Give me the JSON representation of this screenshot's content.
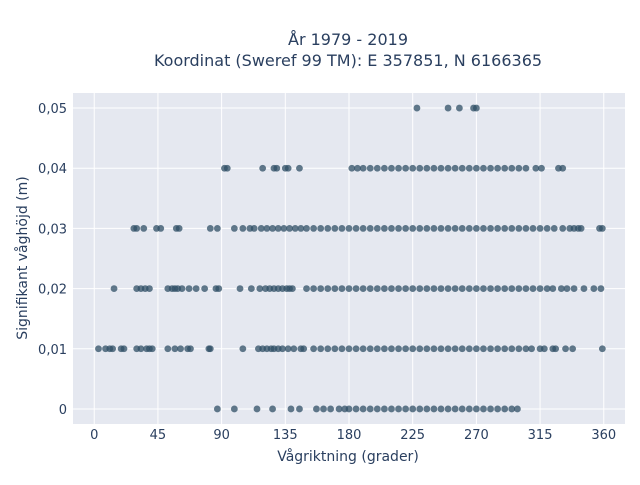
{
  "chart_data": {
    "type": "scatter",
    "title": "År 1979 - 2019",
    "subtitle": "Koordinat (Sweref 99 TM): E 357851, N 6166365",
    "xlabel": "Vågriktning (grader)",
    "ylabel": "Signifikant våghöjd (m)",
    "xlim": [
      -15,
      375
    ],
    "ylim": [
      -0.0025,
      0.0525
    ],
    "x_ticks": [
      0,
      45,
      90,
      135,
      180,
      225,
      270,
      315,
      360
    ],
    "x_tick_labels": [
      "0",
      "45",
      "90",
      "135",
      "180",
      "225",
      "270",
      "315",
      "360"
    ],
    "y_ticks": [
      0,
      0.01,
      0.02,
      0.03,
      0.04,
      0.05
    ],
    "y_tick_labels": [
      "0",
      "0,01",
      "0,02",
      "0,03",
      "0,04",
      "0,05"
    ],
    "grid": true,
    "marker_color": "#2f4f66",
    "plot_bg": "#e5e8f0",
    "series": [
      {
        "points": [
          [
            87,
            0
          ],
          [
            99,
            0
          ],
          [
            115,
            0
          ],
          [
            126,
            0
          ],
          [
            139,
            0
          ],
          [
            145,
            0
          ],
          [
            157,
            0
          ],
          [
            162,
            0
          ],
          [
            167,
            0
          ],
          [
            173,
            0
          ],
          [
            177,
            0
          ],
          [
            180,
            0
          ],
          [
            185,
            0
          ],
          [
            190,
            0
          ],
          [
            195,
            0
          ],
          [
            200,
            0
          ],
          [
            205,
            0
          ],
          [
            210,
            0
          ],
          [
            215,
            0
          ],
          [
            220,
            0
          ],
          [
            225,
            0
          ],
          [
            230,
            0
          ],
          [
            235,
            0
          ],
          [
            240,
            0
          ],
          [
            245,
            0
          ],
          [
            250,
            0
          ],
          [
            255,
            0
          ],
          [
            260,
            0
          ],
          [
            265,
            0
          ],
          [
            270,
            0
          ],
          [
            275,
            0
          ],
          [
            280,
            0
          ],
          [
            285,
            0
          ],
          [
            290,
            0
          ],
          [
            295,
            0
          ],
          [
            299,
            0
          ],
          [
            3,
            0.01
          ],
          [
            8,
            0.01
          ],
          [
            11,
            0.01
          ],
          [
            13,
            0.01
          ],
          [
            19,
            0.01
          ],
          [
            21,
            0.01
          ],
          [
            30,
            0.01
          ],
          [
            33,
            0.01
          ],
          [
            37,
            0.01
          ],
          [
            39,
            0.01
          ],
          [
            41,
            0.01
          ],
          [
            52,
            0.01
          ],
          [
            57,
            0.01
          ],
          [
            61,
            0.01
          ],
          [
            66,
            0.01
          ],
          [
            68,
            0.01
          ],
          [
            81,
            0.01
          ],
          [
            82,
            0.01
          ],
          [
            105,
            0.01
          ],
          [
            116,
            0.01
          ],
          [
            119,
            0.01
          ],
          [
            122,
            0.01
          ],
          [
            125,
            0.01
          ],
          [
            127,
            0.01
          ],
          [
            130,
            0.01
          ],
          [
            133,
            0.01
          ],
          [
            137,
            0.01
          ],
          [
            141,
            0.01
          ],
          [
            146,
            0.01
          ],
          [
            148,
            0.01
          ],
          [
            155,
            0.01
          ],
          [
            160,
            0.01
          ],
          [
            165,
            0.01
          ],
          [
            170,
            0.01
          ],
          [
            175,
            0.01
          ],
          [
            180,
            0.01
          ],
          [
            185,
            0.01
          ],
          [
            190,
            0.01
          ],
          [
            195,
            0.01
          ],
          [
            200,
            0.01
          ],
          [
            205,
            0.01
          ],
          [
            210,
            0.01
          ],
          [
            215,
            0.01
          ],
          [
            220,
            0.01
          ],
          [
            225,
            0.01
          ],
          [
            230,
            0.01
          ],
          [
            235,
            0.01
          ],
          [
            240,
            0.01
          ],
          [
            245,
            0.01
          ],
          [
            250,
            0.01
          ],
          [
            255,
            0.01
          ],
          [
            260,
            0.01
          ],
          [
            265,
            0.01
          ],
          [
            270,
            0.01
          ],
          [
            275,
            0.01
          ],
          [
            280,
            0.01
          ],
          [
            285,
            0.01
          ],
          [
            290,
            0.01
          ],
          [
            295,
            0.01
          ],
          [
            300,
            0.01
          ],
          [
            305,
            0.01
          ],
          [
            309,
            0.01
          ],
          [
            315,
            0.01
          ],
          [
            318,
            0.01
          ],
          [
            324,
            0.01
          ],
          [
            326,
            0.01
          ],
          [
            333,
            0.01
          ],
          [
            338,
            0.01
          ],
          [
            359,
            0.01
          ],
          [
            14,
            0.02
          ],
          [
            30,
            0.02
          ],
          [
            33,
            0.02
          ],
          [
            36,
            0.02
          ],
          [
            39,
            0.02
          ],
          [
            52,
            0.02
          ],
          [
            55,
            0.02
          ],
          [
            57,
            0.02
          ],
          [
            59,
            0.02
          ],
          [
            62,
            0.02
          ],
          [
            67,
            0.02
          ],
          [
            72,
            0.02
          ],
          [
            78,
            0.02
          ],
          [
            86,
            0.02
          ],
          [
            88,
            0.02
          ],
          [
            103,
            0.02
          ],
          [
            111,
            0.02
          ],
          [
            117,
            0.02
          ],
          [
            121,
            0.02
          ],
          [
            124,
            0.02
          ],
          [
            127,
            0.02
          ],
          [
            130,
            0.02
          ],
          [
            133,
            0.02
          ],
          [
            136,
            0.02
          ],
          [
            138,
            0.02
          ],
          [
            140,
            0.02
          ],
          [
            150,
            0.02
          ],
          [
            155,
            0.02
          ],
          [
            160,
            0.02
          ],
          [
            165,
            0.02
          ],
          [
            170,
            0.02
          ],
          [
            175,
            0.02
          ],
          [
            180,
            0.02
          ],
          [
            185,
            0.02
          ],
          [
            190,
            0.02
          ],
          [
            195,
            0.02
          ],
          [
            200,
            0.02
          ],
          [
            205,
            0.02
          ],
          [
            210,
            0.02
          ],
          [
            215,
            0.02
          ],
          [
            220,
            0.02
          ],
          [
            225,
            0.02
          ],
          [
            230,
            0.02
          ],
          [
            235,
            0.02
          ],
          [
            240,
            0.02
          ],
          [
            245,
            0.02
          ],
          [
            250,
            0.02
          ],
          [
            255,
            0.02
          ],
          [
            260,
            0.02
          ],
          [
            265,
            0.02
          ],
          [
            270,
            0.02
          ],
          [
            275,
            0.02
          ],
          [
            280,
            0.02
          ],
          [
            285,
            0.02
          ],
          [
            290,
            0.02
          ],
          [
            295,
            0.02
          ],
          [
            300,
            0.02
          ],
          [
            305,
            0.02
          ],
          [
            310,
            0.02
          ],
          [
            315,
            0.02
          ],
          [
            320,
            0.02
          ],
          [
            324,
            0.02
          ],
          [
            330,
            0.02
          ],
          [
            334,
            0.02
          ],
          [
            339,
            0.02
          ],
          [
            346,
            0.02
          ],
          [
            353,
            0.02
          ],
          [
            358,
            0.02
          ],
          [
            28,
            0.03
          ],
          [
            30,
            0.03
          ],
          [
            35,
            0.03
          ],
          [
            44,
            0.03
          ],
          [
            47,
            0.03
          ],
          [
            58,
            0.03
          ],
          [
            60,
            0.03
          ],
          [
            82,
            0.03
          ],
          [
            87,
            0.03
          ],
          [
            99,
            0.03
          ],
          [
            105,
            0.03
          ],
          [
            110,
            0.03
          ],
          [
            113,
            0.03
          ],
          [
            118,
            0.03
          ],
          [
            122,
            0.03
          ],
          [
            126,
            0.03
          ],
          [
            130,
            0.03
          ],
          [
            134,
            0.03
          ],
          [
            138,
            0.03
          ],
          [
            142,
            0.03
          ],
          [
            146,
            0.03
          ],
          [
            150,
            0.03
          ],
          [
            155,
            0.03
          ],
          [
            160,
            0.03
          ],
          [
            165,
            0.03
          ],
          [
            170,
            0.03
          ],
          [
            175,
            0.03
          ],
          [
            180,
            0.03
          ],
          [
            185,
            0.03
          ],
          [
            190,
            0.03
          ],
          [
            195,
            0.03
          ],
          [
            200,
            0.03
          ],
          [
            205,
            0.03
          ],
          [
            210,
            0.03
          ],
          [
            215,
            0.03
          ],
          [
            220,
            0.03
          ],
          [
            225,
            0.03
          ],
          [
            230,
            0.03
          ],
          [
            235,
            0.03
          ],
          [
            240,
            0.03
          ],
          [
            245,
            0.03
          ],
          [
            250,
            0.03
          ],
          [
            255,
            0.03
          ],
          [
            260,
            0.03
          ],
          [
            265,
            0.03
          ],
          [
            270,
            0.03
          ],
          [
            275,
            0.03
          ],
          [
            280,
            0.03
          ],
          [
            285,
            0.03
          ],
          [
            290,
            0.03
          ],
          [
            295,
            0.03
          ],
          [
            300,
            0.03
          ],
          [
            305,
            0.03
          ],
          [
            310,
            0.03
          ],
          [
            315,
            0.03
          ],
          [
            320,
            0.03
          ],
          [
            325,
            0.03
          ],
          [
            331,
            0.03
          ],
          [
            336,
            0.03
          ],
          [
            339,
            0.03
          ],
          [
            342,
            0.03
          ],
          [
            344,
            0.03
          ],
          [
            357,
            0.03
          ],
          [
            359,
            0.03
          ],
          [
            92,
            0.04
          ],
          [
            94,
            0.04
          ],
          [
            119,
            0.04
          ],
          [
            127,
            0.04
          ],
          [
            129,
            0.04
          ],
          [
            135,
            0.04
          ],
          [
            137,
            0.04
          ],
          [
            145,
            0.04
          ],
          [
            182,
            0.04
          ],
          [
            186,
            0.04
          ],
          [
            190,
            0.04
          ],
          [
            195,
            0.04
          ],
          [
            200,
            0.04
          ],
          [
            205,
            0.04
          ],
          [
            210,
            0.04
          ],
          [
            215,
            0.04
          ],
          [
            220,
            0.04
          ],
          [
            225,
            0.04
          ],
          [
            230,
            0.04
          ],
          [
            235,
            0.04
          ],
          [
            240,
            0.04
          ],
          [
            245,
            0.04
          ],
          [
            250,
            0.04
          ],
          [
            255,
            0.04
          ],
          [
            260,
            0.04
          ],
          [
            265,
            0.04
          ],
          [
            270,
            0.04
          ],
          [
            275,
            0.04
          ],
          [
            280,
            0.04
          ],
          [
            285,
            0.04
          ],
          [
            290,
            0.04
          ],
          [
            295,
            0.04
          ],
          [
            300,
            0.04
          ],
          [
            305,
            0.04
          ],
          [
            312,
            0.04
          ],
          [
            316,
            0.04
          ],
          [
            328,
            0.04
          ],
          [
            331,
            0.04
          ],
          [
            228,
            0.05
          ],
          [
            250,
            0.05
          ],
          [
            258,
            0.05
          ],
          [
            268,
            0.05
          ],
          [
            270,
            0.05
          ]
        ]
      }
    ]
  }
}
